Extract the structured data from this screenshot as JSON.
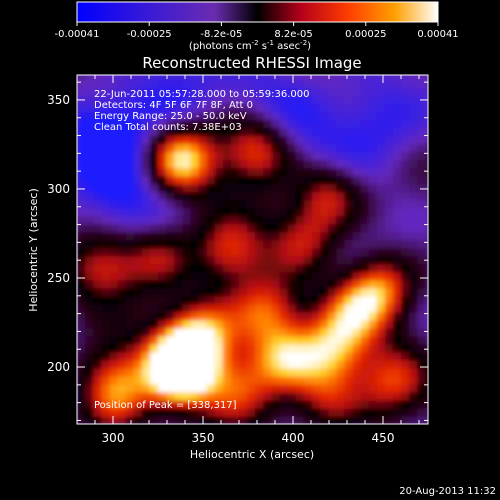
{
  "colorbar": {
    "ticks": [
      "-0.00041",
      "-0.00025",
      "-8.2e-05",
      "8.2e-05",
      "0.00025",
      "0.00041"
    ],
    "unit_main": "(photons cm",
    "unit_exp1": "-2",
    "unit_mid": " s",
    "unit_exp2": "-1",
    "unit_end": " asec",
    "unit_exp3": "-2",
    "unit_close": ")"
  },
  "plot": {
    "info_lines": [
      "22-Jun-2011 05:57:28.000 to 05:59:36.000",
      "Detectors: 4F 5F 6F 7F 8F, Att 0",
      "Energy Range: 25.0 - 50.0 keV",
      "Clean     Total counts: 7.38E+03"
    ],
    "peak_label": "Position of Peak = [338,317]"
  },
  "footer": {
    "timestamp": "20-Aug-2013 11:32"
  },
  "chart_data": {
    "type": "heatmap",
    "title": "Reconstructed RHESSI Image",
    "xlabel": "Heliocentric X (arcsec)",
    "ylabel": "Heliocentric Y (arcsec)",
    "xlim": [
      280,
      475
    ],
    "ylim": [
      168,
      364
    ],
    "xticks": [
      300,
      350,
      400,
      450
    ],
    "yticks": [
      200,
      250,
      300,
      350
    ],
    "colorbar_range": [
      -0.00041,
      0.00041
    ],
    "colormap": [
      "#1a1aff",
      "#7a2cc6",
      "#2a0010",
      "#d21f00",
      "#ff7f00",
      "#ffff4a",
      "#ffffff"
    ],
    "peak": [
      338,
      317
    ],
    "hotspots": [
      {
        "x": 338,
        "y": 317,
        "level": 1.0
      },
      {
        "x": 380,
        "y": 322,
        "level": 0.75
      },
      {
        "x": 420,
        "y": 297,
        "level": 0.7
      },
      {
        "x": 407,
        "y": 270,
        "level": 0.6
      },
      {
        "x": 365,
        "y": 265,
        "level": 0.65
      },
      {
        "x": 325,
        "y": 263,
        "level": 0.55
      },
      {
        "x": 295,
        "y": 257,
        "level": 0.6
      },
      {
        "x": 448,
        "y": 245,
        "level": 0.8
      },
      {
        "x": 432,
        "y": 232,
        "level": 0.6
      },
      {
        "x": 385,
        "y": 232,
        "level": 0.7
      },
      {
        "x": 352,
        "y": 222,
        "level": 0.6
      },
      {
        "x": 340,
        "y": 208,
        "level": 0.85
      },
      {
        "x": 337,
        "y": 196,
        "level": 0.95
      },
      {
        "x": 395,
        "y": 205,
        "level": 0.8
      },
      {
        "x": 422,
        "y": 210,
        "level": 0.7
      },
      {
        "x": 300,
        "y": 195,
        "level": 0.55
      },
      {
        "x": 302,
        "y": 180,
        "level": 0.5
      },
      {
        "x": 370,
        "y": 188,
        "level": 0.6
      },
      {
        "x": 455,
        "y": 192,
        "level": 0.6
      },
      {
        "x": 420,
        "y": 182,
        "level": 0.55
      }
    ],
    "coldspots": [
      {
        "x": 296,
        "y": 327,
        "level": -0.9
      },
      {
        "x": 330,
        "y": 352,
        "level": -0.5
      },
      {
        "x": 448,
        "y": 340,
        "level": -0.55
      },
      {
        "x": 395,
        "y": 352,
        "level": -0.4
      },
      {
        "x": 420,
        "y": 255,
        "level": -0.4
      },
      {
        "x": 310,
        "y": 290,
        "level": -0.45
      },
      {
        "x": 420,
        "y": 320,
        "level": -0.35
      }
    ]
  }
}
